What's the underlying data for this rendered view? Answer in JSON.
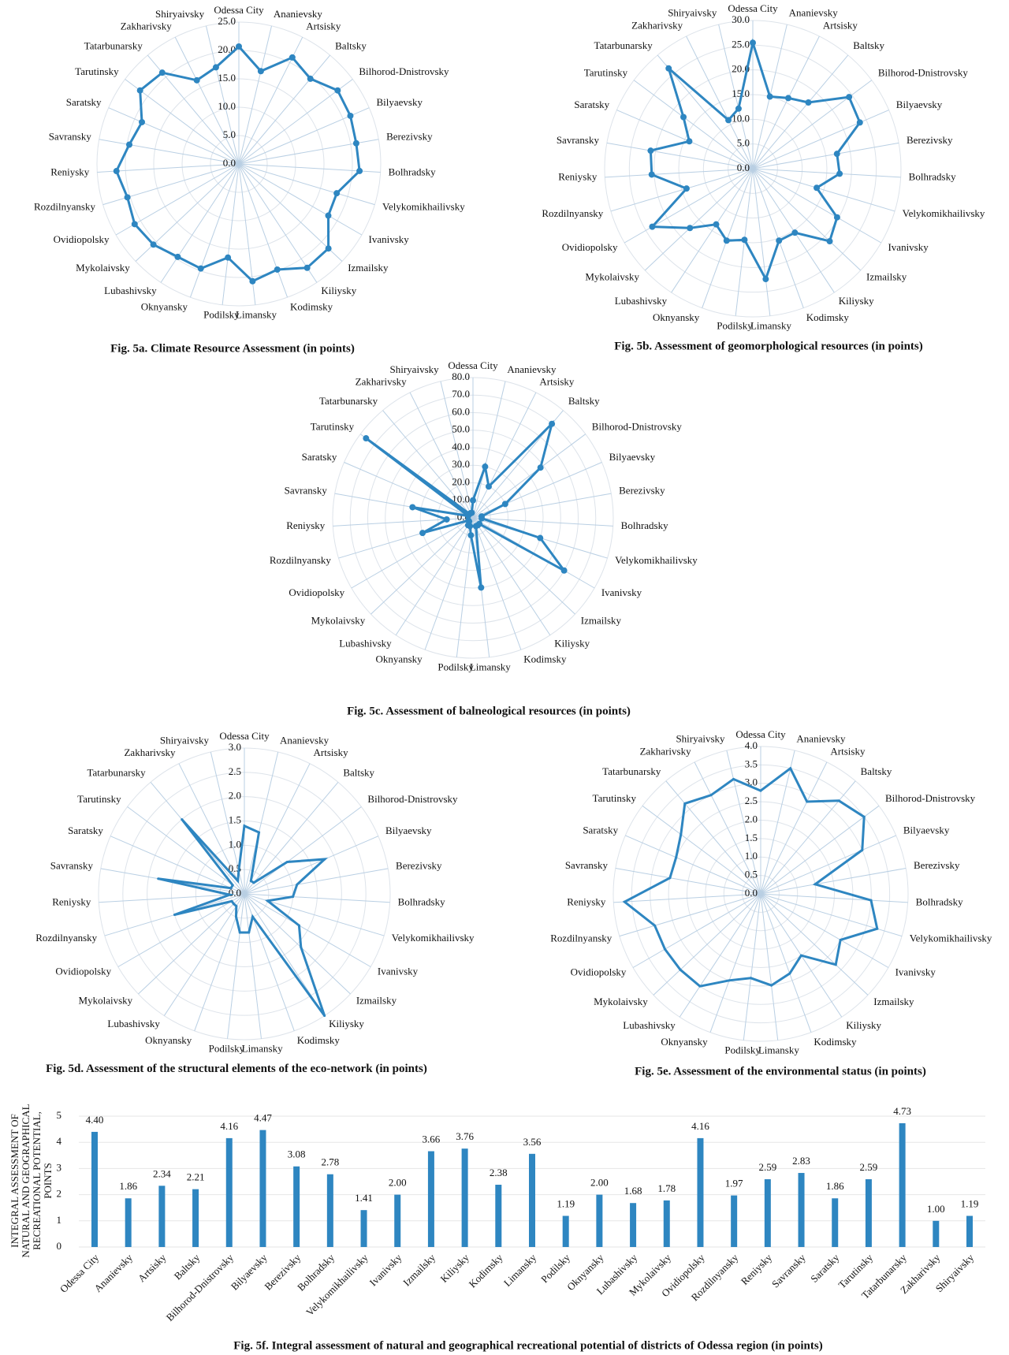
{
  "chart_data": [
    {
      "type": "radar",
      "title": "Fig. 5a. Climate Resource Assessment (in points)",
      "categories": [
        "Odessa City",
        "Ananievsky",
        "Artsisky",
        "Baltsky",
        "Bilhorod-Dnistrovsky",
        "Bilyaevsky",
        "Berezivsky",
        "Bolhradsky",
        "Velykomikhailivsky",
        "Ivanivsky",
        "Izmailsky",
        "Kiliysky",
        "Kodimsky",
        "Limansky",
        "Podilsky",
        "Oknyansky",
        "Lubashivsky",
        "Mykolaivsky",
        "Ovidiopolsky",
        "Rozdilnyansky",
        "Reniysky",
        "Savransky",
        "Saratsky",
        "Tarutinsky",
        "Tatarbunarsky",
        "Zakharivsky",
        "Shiryaivsky"
      ],
      "values": [
        20.7,
        16.8,
        21,
        19.6,
        21.7,
        21.4,
        21,
        21.3,
        18,
        18.2,
        21.7,
        21.9,
        19.8,
        20.8,
        16.6,
        19.6,
        19.6,
        20.7,
        21.2,
        20.5,
        21.6,
        19.6,
        18.6,
        21.7,
        21,
        16.5,
        17.5
      ],
      "color": "#2e86c1",
      "markers": true,
      "ylim": [
        0,
        25
      ],
      "yticks": [
        {
          "value": 0,
          "label": "0.0"
        },
        {
          "value": 5,
          "label": "5.0"
        },
        {
          "value": 10,
          "label": "10.0"
        },
        {
          "value": 15,
          "label": "15.0"
        },
        {
          "value": 20,
          "label": "20.0"
        },
        {
          "value": 25,
          "label": "25.0"
        }
      ]
    },
    {
      "type": "radar",
      "title": "Fig. 5b. Assessment of geomorphological resources (in points)",
      "categories": [
        "Odessa City",
        "Ananievsky",
        "Artsisky",
        "Baltsky",
        "Bilhorod-Dnistrovsky",
        "Bilyaevsky",
        "Berezivsky",
        "Bolhradsky",
        "Velykomikhailivsky",
        "Ivanivsky",
        "Izmailsky",
        "Kiliysky",
        "Kodimsky",
        "Limansky",
        "Podilsky",
        "Oknyansky",
        "Lubashivsky",
        "Mykolaivsky",
        "Ovidiopolsky",
        "Rozdilnyansky",
        "Reniysky",
        "Savransky",
        "Saratsky",
        "Tarutinsky",
        "Tatarbunarsky",
        "Zakharivsky",
        "Shiryaivsky"
      ],
      "values": [
        25.5,
        15,
        16,
        17.5,
        24.3,
        23.6,
        17.3,
        17.6,
        13.5,
        19.7,
        21.4,
        15.5,
        15.5,
        22.5,
        14.5,
        15.5,
        13.5,
        17.5,
        23.5,
        14,
        20.5,
        21,
        14,
        17.5,
        26.5,
        11,
        12.5
      ],
      "color": "#2e86c1",
      "markers": true,
      "ylim": [
        0,
        30
      ],
      "yticks": [
        {
          "value": 0,
          "label": "0.0"
        },
        {
          "value": 5,
          "label": "5.0"
        },
        {
          "value": 10,
          "label": "10.0"
        },
        {
          "value": 15,
          "label": "15.0"
        },
        {
          "value": 20,
          "label": "20.0"
        },
        {
          "value": 25,
          "label": "25.0"
        },
        {
          "value": 30,
          "label": "30.0"
        }
      ]
    },
    {
      "type": "radar",
      "title": "Fig. 5c. Assessment of balneological resources (in points)",
      "categories": [
        "Odessa City",
        "Ananievsky",
        "Artsisky",
        "Baltsky",
        "Bilhorod-Dnistrovsky",
        "Bilyaevsky",
        "Berezivsky",
        "Bolhradsky",
        "Velykomikhailivsky",
        "Ivanivsky",
        "Izmailsky",
        "Kiliysky",
        "Kodimsky",
        "Limansky",
        "Podilsky",
        "Oknyansky",
        "Lubashivsky",
        "Mykolaivsky",
        "Ovidiopolsky",
        "Rozdilnyansky",
        "Reniysky",
        "Savransky",
        "Saratsky",
        "Tarutinsky",
        "Tatarbunarsky",
        "Zakharivsky",
        "Shiryaivsky"
      ],
      "values": [
        10,
        30,
        20,
        70,
        48,
        20,
        5,
        5,
        40,
        60,
        5,
        5,
        5,
        40,
        10,
        5,
        5,
        3,
        3,
        30,
        15,
        35,
        3,
        76,
        3,
        3,
        3
      ],
      "color": "#2e86c1",
      "markers": true,
      "ylim": [
        0,
        80
      ],
      "yticks": [
        {
          "value": 0,
          "label": "0.0"
        },
        {
          "value": 10,
          "label": "10.0"
        },
        {
          "value": 20,
          "label": "20.0"
        },
        {
          "value": 30,
          "label": "30.0"
        },
        {
          "value": 40,
          "label": "40.0"
        },
        {
          "value": 50,
          "label": "50.0"
        },
        {
          "value": 60,
          "label": "60.0"
        },
        {
          "value": 70,
          "label": "70.0"
        },
        {
          "value": 80,
          "label": "80.0"
        }
      ]
    },
    {
      "type": "radar",
      "title": "Fig. 5d. Assessment of the structural elements of the eco-network (in points)",
      "categories": [
        "Odessa City",
        "Ananievsky",
        "Artsisky",
        "Baltsky",
        "Bilhorod-Dnistrovsky",
        "Bilyaevsky",
        "Berezivsky",
        "Bolhradsky",
        "Velykomikhailivsky",
        "Ivanivsky",
        "Izmailsky",
        "Kiliysky",
        "Kodimsky",
        "Limansky",
        "Podilsky",
        "Oknyansky",
        "Lubashivsky",
        "Mykolaivsky",
        "Ovidiopolsky",
        "Rozdilnyansky",
        "Reniysky",
        "Savransky",
        "Saratsky",
        "Tarutinsky",
        "Tatarbunarsky",
        "Zakharivsky",
        "Shiryaivsky"
      ],
      "values": [
        1.4,
        1.3,
        0.3,
        0.3,
        1.1,
        1.8,
        1.1,
        1,
        0.5,
        1.3,
        1.6,
        3,
        0.5,
        0.8,
        0.8,
        0.5,
        0.3,
        0.3,
        0.3,
        1.5,
        0.3,
        1.8,
        0.3,
        0.3,
        2,
        0.3,
        0.5
      ],
      "color": "#2e86c1",
      "markers": false,
      "ylim": [
        0,
        3
      ],
      "yticks": [
        {
          "value": 0,
          "label": "0.0"
        },
        {
          "value": 0.5,
          "label": "0.5"
        },
        {
          "value": 1,
          "label": "1.0"
        },
        {
          "value": 1.5,
          "label": "1.5"
        },
        {
          "value": 2,
          "label": "2.0"
        },
        {
          "value": 2.5,
          "label": "2.5"
        },
        {
          "value": 3,
          "label": "3.0"
        }
      ]
    },
    {
      "type": "radar",
      "title": "Fig. 5e. Assessment of the environmental status (in points)",
      "categories": [
        "Odessa City",
        "Ananievsky",
        "Artsisky",
        "Baltsky",
        "Bilhorod-Dnistrovsky",
        "Bilyaevsky",
        "Berezivsky",
        "Bolhradsky",
        "Velykomikhailivsky",
        "Ivanivsky",
        "Izmailsky",
        "Kiliysky",
        "Kodimsky",
        "Limansky",
        "Podilsky",
        "Oknyansky",
        "Lubashivsky",
        "Mykolaivsky",
        "Ovidiopolsky",
        "Rozdilnyansky",
        "Reniysky",
        "Savransky",
        "Saratsky",
        "Tarutinsky",
        "Tatarbunarsky",
        "Zakharivsky",
        "Shiryaivsky"
      ],
      "values": [
        2.8,
        3.5,
        2.8,
        3.3,
        3.5,
        3,
        1.5,
        3,
        3.3,
        2.5,
        2.8,
        2,
        2.3,
        2.5,
        2.3,
        2.5,
        3,
        3,
        3,
        3,
        3.7,
        2.5,
        2.5,
        2.7,
        3.2,
        3,
        3.2
      ],
      "color": "#2e86c1",
      "markers": false,
      "ylim": [
        0,
        4
      ],
      "yticks": [
        {
          "value": 0,
          "label": "0.0"
        },
        {
          "value": 0.5,
          "label": "0.5"
        },
        {
          "value": 1,
          "label": "1.0"
        },
        {
          "value": 1.5,
          "label": "1.5"
        },
        {
          "value": 2,
          "label": "2.0"
        },
        {
          "value": 2.5,
          "label": "2.5"
        },
        {
          "value": 3,
          "label": "3.0"
        },
        {
          "value": 3.5,
          "label": "3.5"
        },
        {
          "value": 4,
          "label": "4.0"
        }
      ]
    },
    {
      "type": "bar",
      "title": "Fig. 5f. Integral assessment of natural and geographical recreational potential of districts of Odessa region (in points)",
      "y_label": "INTEGRAL ASSESSMENT OF NATURAL AND GEOGRAPHICAL RECREATIONAL POTENTIAL, POINTS",
      "categories": [
        "Odessa City",
        "Ananievsky",
        "Artsisky",
        "Baltsky",
        "Bilhorod-Dnistrovsky",
        "Bilyaevsky",
        "Berezivsky",
        "Bolhradsky",
        "Velykomikhailivsky",
        "Ivanivsky",
        "Izmailsky",
        "Kiliysky",
        "Kodimsky",
        "Limansky",
        "Podilsky",
        "Oknyansky",
        "Lubashivsky",
        "Mykolaivsky",
        "Ovidiopolsky",
        "Rozdilnyansky",
        "Reniysky",
        "Savransky",
        "Saratsky",
        "Tarutinsky",
        "Tatarbunarsky",
        "Zakharivsky",
        "Shiryaivsky"
      ],
      "values": [
        4.4,
        1.86,
        2.34,
        2.21,
        4.16,
        4.47,
        3.08,
        2.78,
        1.41,
        2,
        3.66,
        3.76,
        2.38,
        3.56,
        1.19,
        2,
        1.68,
        1.78,
        4.16,
        1.97,
        2.59,
        2.83,
        1.86,
        2.59,
        4.73,
        1,
        1.19
      ],
      "value_labels": [
        "4.40",
        "1.86",
        "2.34",
        "2.21",
        "4.16",
        "4.47",
        "3.08",
        "2.78",
        "1.41",
        "2.00",
        "3.66",
        "3.76",
        "2.38",
        "3.56",
        "1.19",
        "2.00",
        "1.68",
        "1.78",
        "4.16",
        "1.97",
        "2.59",
        "2.83",
        "1.86",
        "2.59",
        "4.73",
        "1.00",
        "1.19"
      ],
      "color": "#2e86c1",
      "grid": true,
      "ylim": [
        0,
        5
      ],
      "yticks": [
        0,
        1,
        2,
        3,
        4,
        5
      ]
    }
  ]
}
